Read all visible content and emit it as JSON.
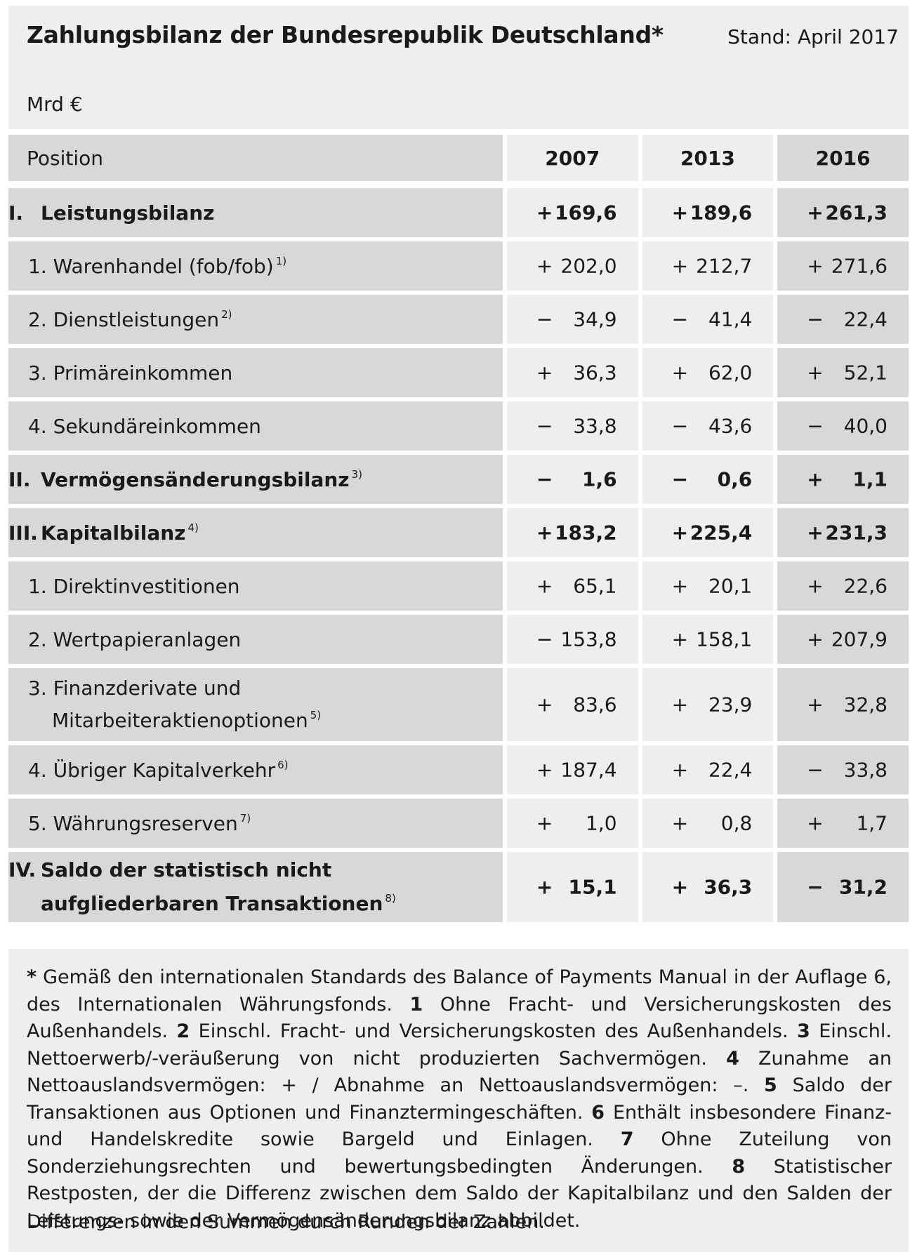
{
  "header": {
    "title": "Zahlungsbilanz der Bundesrepublik Deutschland*",
    "stand": "Stand: April 2017",
    "unit": "Mrd €"
  },
  "table": {
    "position_label": "Position",
    "years": [
      "2007",
      "2013",
      "2016"
    ],
    "rows": [
      {
        "kind": "section",
        "num": "I.",
        "label": "Leistungsbilanz",
        "note": "",
        "values": [
          {
            "sign": "+",
            "num": "169,6"
          },
          {
            "sign": "+",
            "num": "189,6"
          },
          {
            "sign": "+",
            "num": "261,3"
          }
        ]
      },
      {
        "kind": "sub",
        "num": "1.",
        "label": "Warenhandel (fob/fob)",
        "note": "1)",
        "values": [
          {
            "sign": "+",
            "num": "202,0"
          },
          {
            "sign": "+",
            "num": "212,7"
          },
          {
            "sign": "+",
            "num": "271,6"
          }
        ]
      },
      {
        "kind": "sub",
        "num": "2.",
        "label": "Dienstleistungen",
        "note": "2)",
        "values": [
          {
            "sign": "−",
            "num": "34,9"
          },
          {
            "sign": "−",
            "num": "41,4"
          },
          {
            "sign": "−",
            "num": "22,4"
          }
        ]
      },
      {
        "kind": "sub",
        "num": "3.",
        "label": "Primäreinkommen",
        "note": "",
        "values": [
          {
            "sign": "+",
            "num": "36,3"
          },
          {
            "sign": "+",
            "num": "62,0"
          },
          {
            "sign": "+",
            "num": "52,1"
          }
        ]
      },
      {
        "kind": "sub",
        "num": "4.",
        "label": "Sekundäreinkommen",
        "note": "",
        "values": [
          {
            "sign": "−",
            "num": "33,8"
          },
          {
            "sign": "−",
            "num": "43,6"
          },
          {
            "sign": "−",
            "num": "40,0"
          }
        ]
      },
      {
        "kind": "section",
        "num": "II.",
        "label": "Vermögensänderungsbilanz",
        "note": "3)",
        "values": [
          {
            "sign": "−",
            "num": "1,6"
          },
          {
            "sign": "−",
            "num": "0,6"
          },
          {
            "sign": "+",
            "num": "1,1"
          }
        ]
      },
      {
        "kind": "section",
        "num": "III.",
        "label": "Kapitalbilanz",
        "note": "4)",
        "values": [
          {
            "sign": "+",
            "num": "183,2"
          },
          {
            "sign": "+",
            "num": "225,4"
          },
          {
            "sign": "+",
            "num": "231,3"
          }
        ]
      },
      {
        "kind": "sub",
        "num": "1.",
        "label": "Direktinvestitionen",
        "note": "",
        "values": [
          {
            "sign": "+",
            "num": "65,1"
          },
          {
            "sign": "+",
            "num": "20,1"
          },
          {
            "sign": "+",
            "num": "22,6"
          }
        ]
      },
      {
        "kind": "sub",
        "num": "2.",
        "label": "Wertpapieranlagen",
        "note": "",
        "values": [
          {
            "sign": "−",
            "num": "153,8"
          },
          {
            "sign": "+",
            "num": "158,1"
          },
          {
            "sign": "+",
            "num": "207,9"
          }
        ]
      },
      {
        "kind": "sub2",
        "num": "3.",
        "label": "Finanzderivate und",
        "label2": "Mitarbeiteraktienoptionen",
        "note": "5)",
        "values": [
          {
            "sign": "+",
            "num": "83,6"
          },
          {
            "sign": "+",
            "num": "23,9"
          },
          {
            "sign": "+",
            "num": "32,8"
          }
        ]
      },
      {
        "kind": "sub",
        "num": "4.",
        "label": "Übriger Kapitalverkehr",
        "note": "6)",
        "values": [
          {
            "sign": "+",
            "num": "187,4"
          },
          {
            "sign": "+",
            "num": "22,4"
          },
          {
            "sign": "−",
            "num": "33,8"
          }
        ]
      },
      {
        "kind": "sub",
        "num": "5.",
        "label": "Währungsreserven",
        "note": "7)",
        "values": [
          {
            "sign": "+",
            "num": "1,0"
          },
          {
            "sign": "+",
            "num": "0,8"
          },
          {
            "sign": "+",
            "num": "1,7"
          }
        ]
      },
      {
        "kind": "section2",
        "num": "IV.",
        "label": "Saldo der statistisch nicht",
        "label2": "aufgliederbaren Transaktionen",
        "note": "8)",
        "values": [
          {
            "sign": "+",
            "num": "15,1"
          },
          {
            "sign": "+",
            "num": "36,3"
          },
          {
            "sign": "−",
            "num": "31,2"
          }
        ]
      }
    ]
  },
  "footnotes": {
    "p01": "* Gemäß den internationalen Standards des Balance of Payments Manual in der Auflage 6, des Internationalen Währungsfonds. ",
    "n1": "1",
    "p1": " Ohne Fracht- und Versicherungskosten des Außenhandels. ",
    "n2": "2",
    "p2": " Einschl. Fracht- und Versicherungskosten des Außenhandels. ",
    "n3": "3",
    "p3": " Einschl. Nettoerwerb/-veräußerung von nicht produzierten Sachvermögen. ",
    "n4": "4",
    "p4": " Zunahme an Nettoauslandsvermögen: + / Abnahme an Nettoauslandsvermögen: –. ",
    "n5": "5",
    "p5": " Saldo der Transaktionen aus Optionen und Finanztermingeschäften. ",
    "n6": "6",
    "p6": " Enthält insbesondere Finanz- und Handelskredite sowie Bargeld und Einlagen. ",
    "n7": "7",
    "p7": " Ohne Zuteilung von Sonderziehungsrechten und bewertungsbedingten Änderungen. ",
    "n8": "8",
    "p8": " Statistischer Restposten, der die Differenz zwischen dem Saldo der Kapitalbilanz und den Salden der Leistungs- sowie der Vermögensänderungsbilanz abbildet.",
    "rounding": "Differenzen in den Summen durch Runden der Zahlen."
  }
}
